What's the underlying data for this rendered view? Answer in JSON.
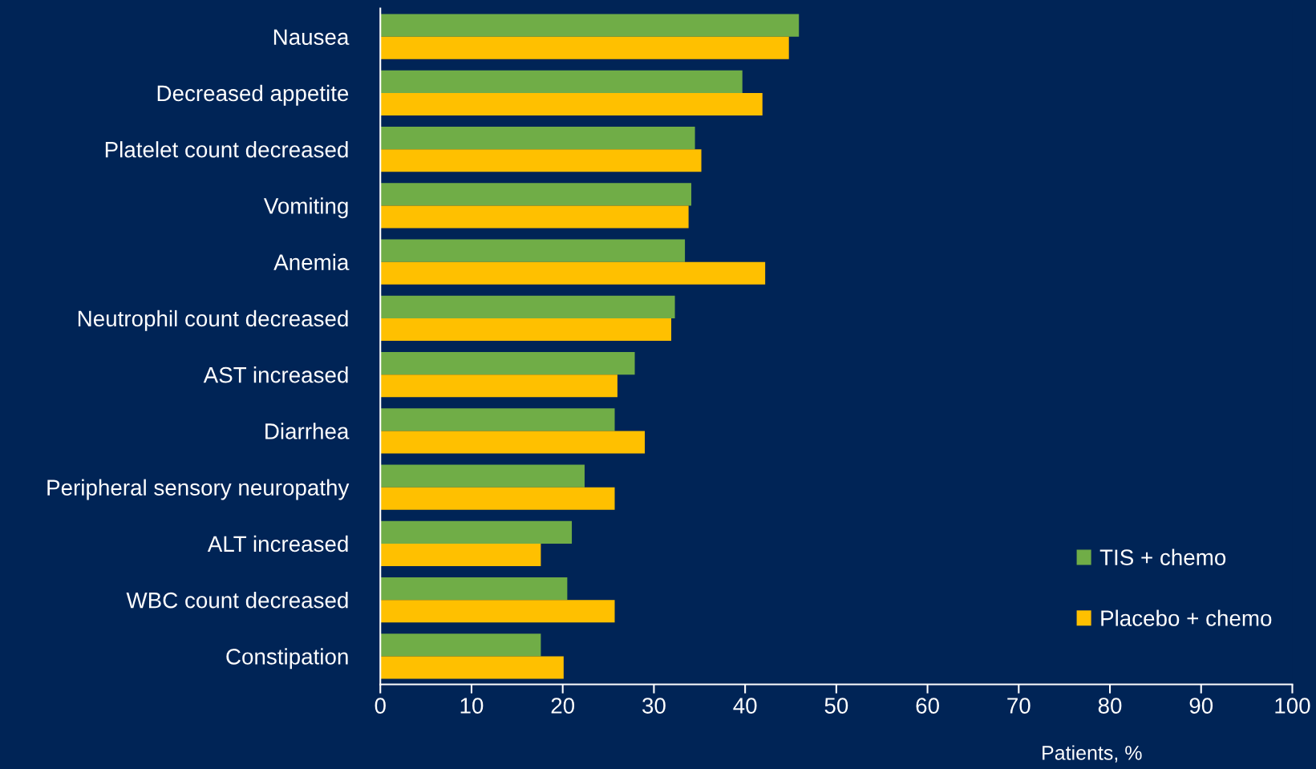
{
  "chart_data": {
    "type": "bar",
    "orientation": "horizontal",
    "xlabel": "Patients, %",
    "categories": [
      "Nausea",
      "Decreased appetite",
      "Platelet count decreased",
      "Vomiting",
      "Anemia",
      "Neutrophil count decreased",
      "AST increased",
      "Diarrhea",
      "Peripheral sensory neuropathy",
      "ALT increased",
      "WBC count decreased",
      "Constipation"
    ],
    "series": [
      {
        "name": "TIS + chemo",
        "color": "#70ad47",
        "values": [
          45.9,
          39.7,
          34.5,
          34.1,
          33.4,
          32.3,
          27.9,
          25.7,
          22.4,
          21.0,
          20.5,
          17.6
        ]
      },
      {
        "name": "Placebo + chemo",
        "color": "#ffc000",
        "values": [
          44.8,
          41.9,
          35.2,
          33.8,
          42.2,
          31.9,
          26.0,
          29.0,
          25.7,
          17.6,
          25.7,
          20.1
        ]
      }
    ],
    "xlim": [
      0,
      100
    ],
    "xticks": [
      0,
      10,
      20,
      30,
      40,
      50,
      60,
      70,
      80,
      90,
      100
    ],
    "grid": false,
    "legend": "bottom right"
  }
}
